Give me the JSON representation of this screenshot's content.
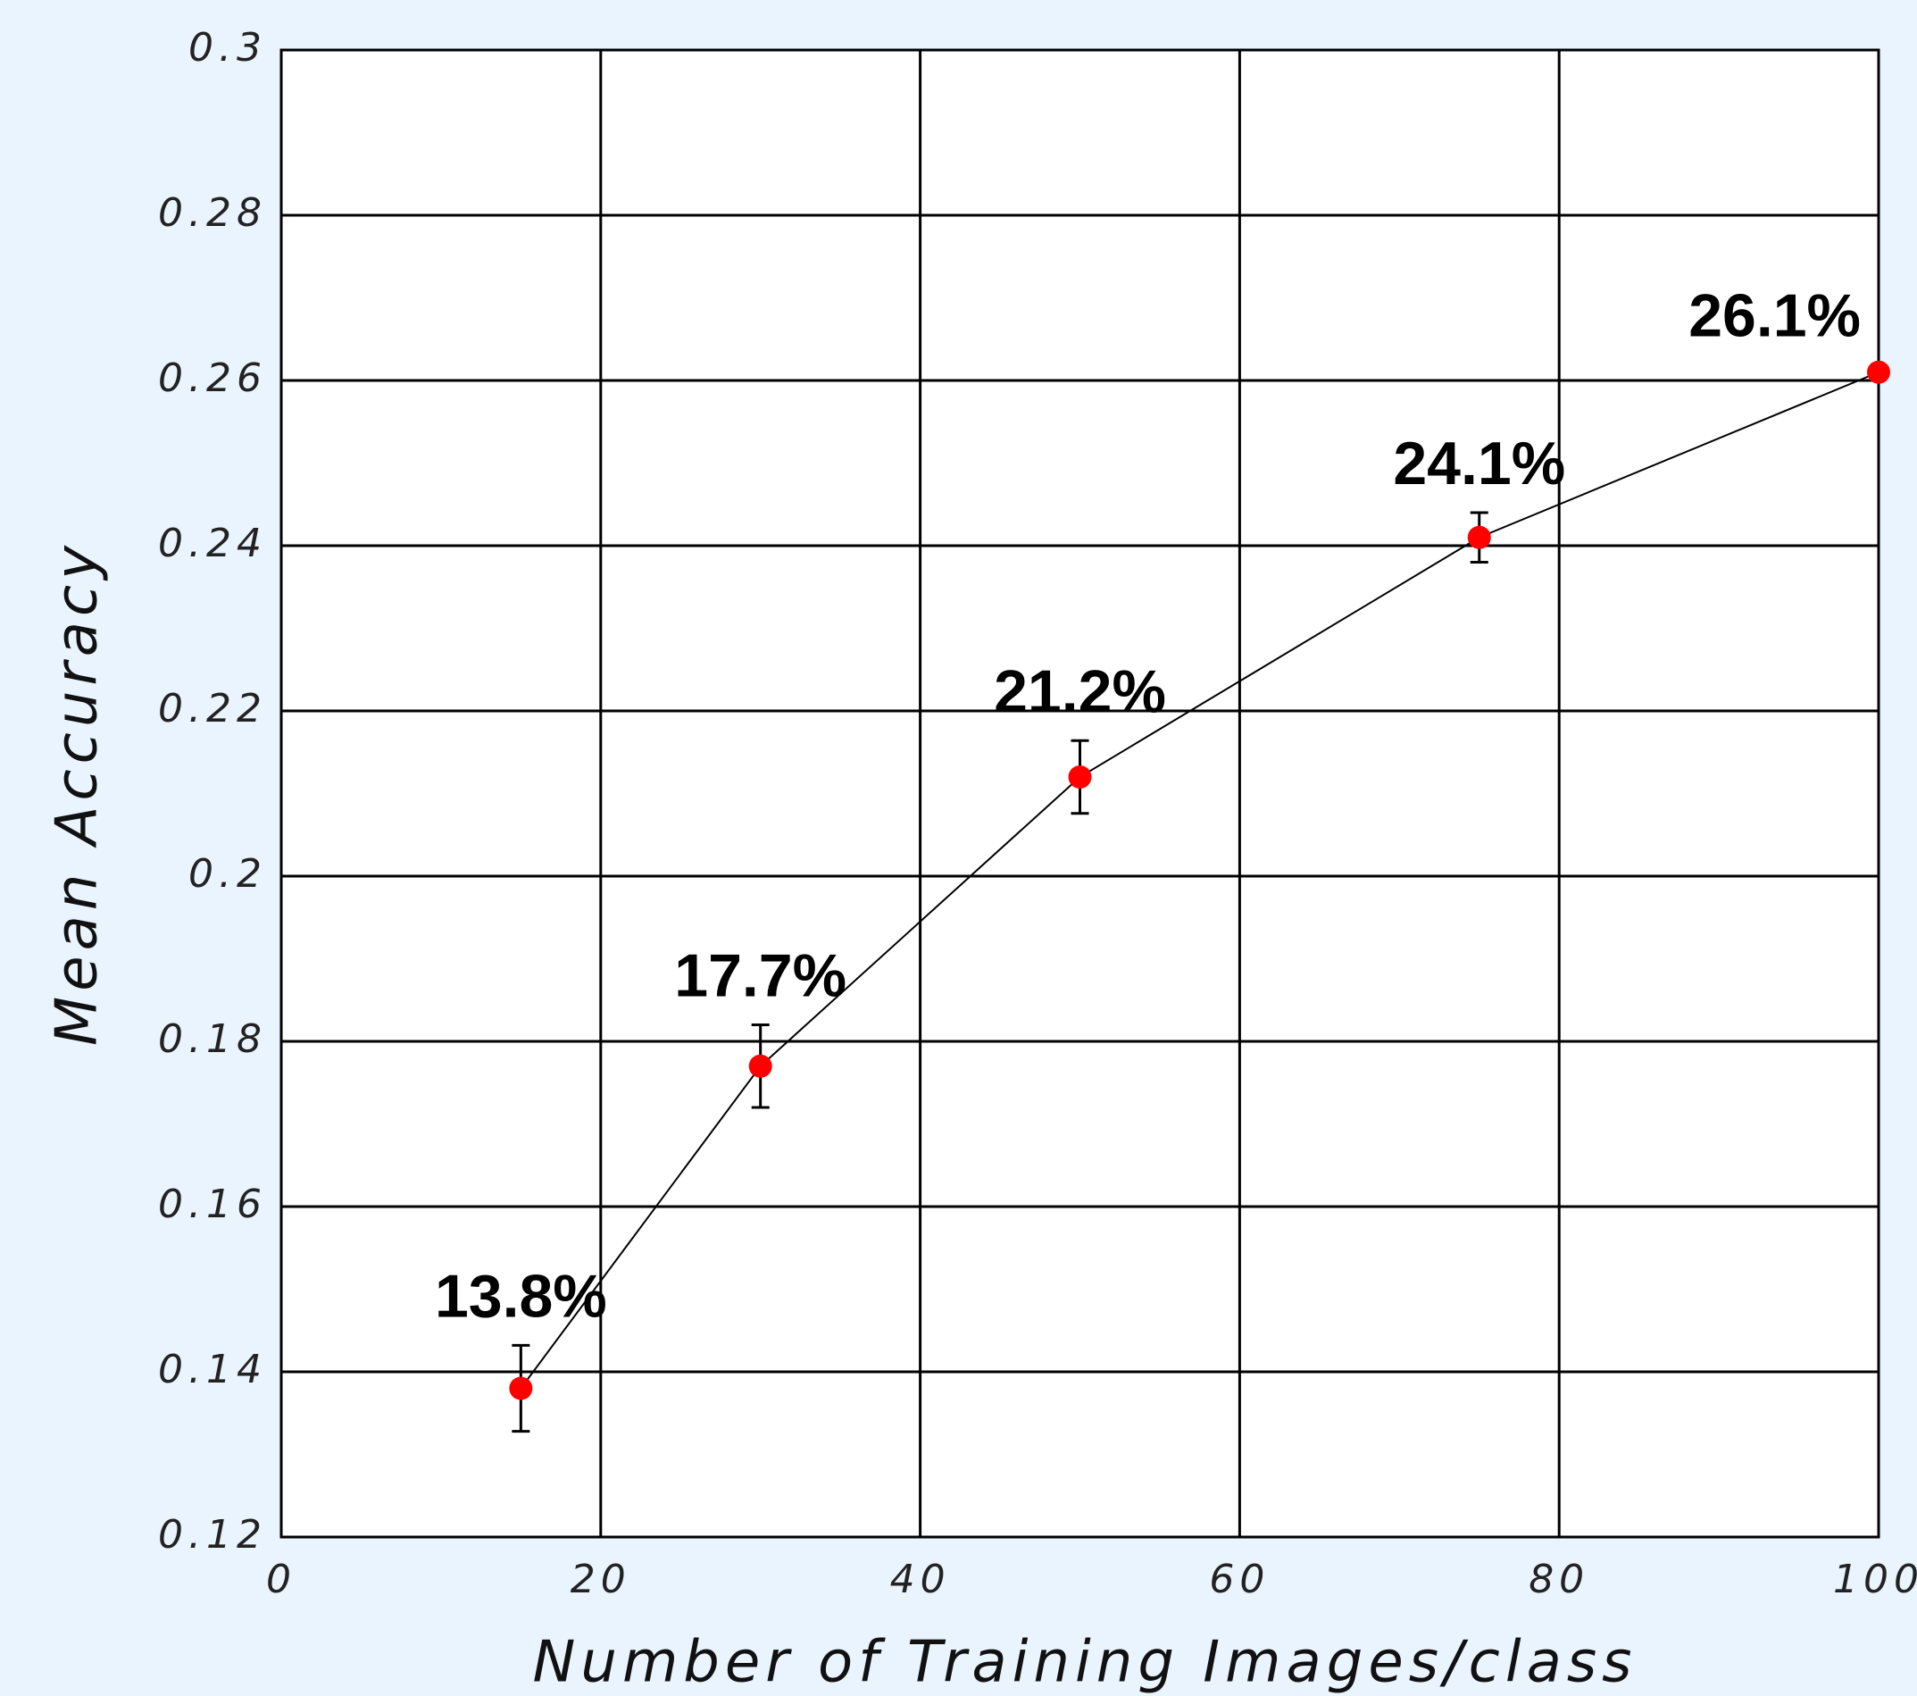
{
  "chart_data": {
    "type": "line",
    "xlabel": "Number of Training Images/class",
    "ylabel": "Mean Accuracy",
    "x": [
      15,
      30,
      50,
      75,
      100
    ],
    "series": [
      {
        "color": "#ff0000",
        "values": [
          0.138,
          0.177,
          0.212,
          0.241,
          0.261
        ],
        "errors": [
          0.0052,
          0.005,
          0.0044,
          0.003,
          null
        ],
        "value_labels": [
          "13.8%",
          "17.7%",
          "21.2%",
          "24.1%",
          "26.1%"
        ]
      }
    ],
    "xlim": [
      0,
      100
    ],
    "xticks": [
      0,
      20,
      40,
      60,
      80,
      100
    ],
    "ylim": [
      0.12,
      0.3
    ],
    "yticks": [
      0.12,
      0.14,
      0.16,
      0.18,
      0.2,
      0.22,
      0.24,
      0.26,
      0.28,
      0.3
    ],
    "grid": true
  }
}
